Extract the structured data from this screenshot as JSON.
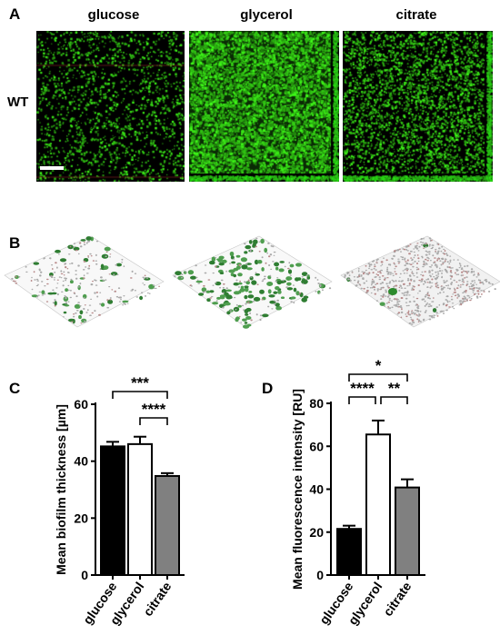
{
  "panels": {
    "a": {
      "letter": "A",
      "strain": "WT",
      "conditions": [
        "glucose",
        "glycerol",
        "citrate"
      ],
      "green_density": [
        0.28,
        1.0,
        0.55
      ]
    },
    "b": {
      "letter": "B"
    },
    "c": {
      "letter": "C"
    },
    "d": {
      "letter": "D"
    }
  },
  "chart_data": [
    {
      "type": "bar",
      "panel": "C",
      "categories": [
        "glucose",
        "glycerol",
        "citrate"
      ],
      "values": [
        45.2,
        46.0,
        34.8
      ],
      "errors": [
        1.6,
        2.6,
        1.0
      ],
      "fill_colors": [
        "#000000",
        "#ffffff",
        "#808080"
      ],
      "ylabel": "Mean biofilm thickness [µm]",
      "ylim": [
        0,
        60
      ],
      "yticks": [
        0,
        20,
        40,
        60
      ],
      "significance": [
        {
          "from": 0,
          "to": 2,
          "label": "***"
        },
        {
          "from": 1,
          "to": 2,
          "label": "****"
        }
      ]
    },
    {
      "type": "bar",
      "panel": "D",
      "categories": [
        "glucose",
        "glycerol",
        "citrate"
      ],
      "values": [
        21.5,
        65.5,
        40.8
      ],
      "errors": [
        1.5,
        6.5,
        3.8
      ],
      "fill_colors": [
        "#000000",
        "#ffffff",
        "#808080"
      ],
      "ylabel": "Mean fluorescence intensity [RU]",
      "ylim": [
        0,
        80
      ],
      "yticks": [
        0,
        20,
        40,
        60,
        80
      ],
      "significance": [
        {
          "from": 0,
          "to": 2,
          "label": "*"
        },
        {
          "from": 0,
          "to": 1,
          "label": "****"
        },
        {
          "from": 1,
          "to": 2,
          "label": "**"
        }
      ]
    }
  ]
}
